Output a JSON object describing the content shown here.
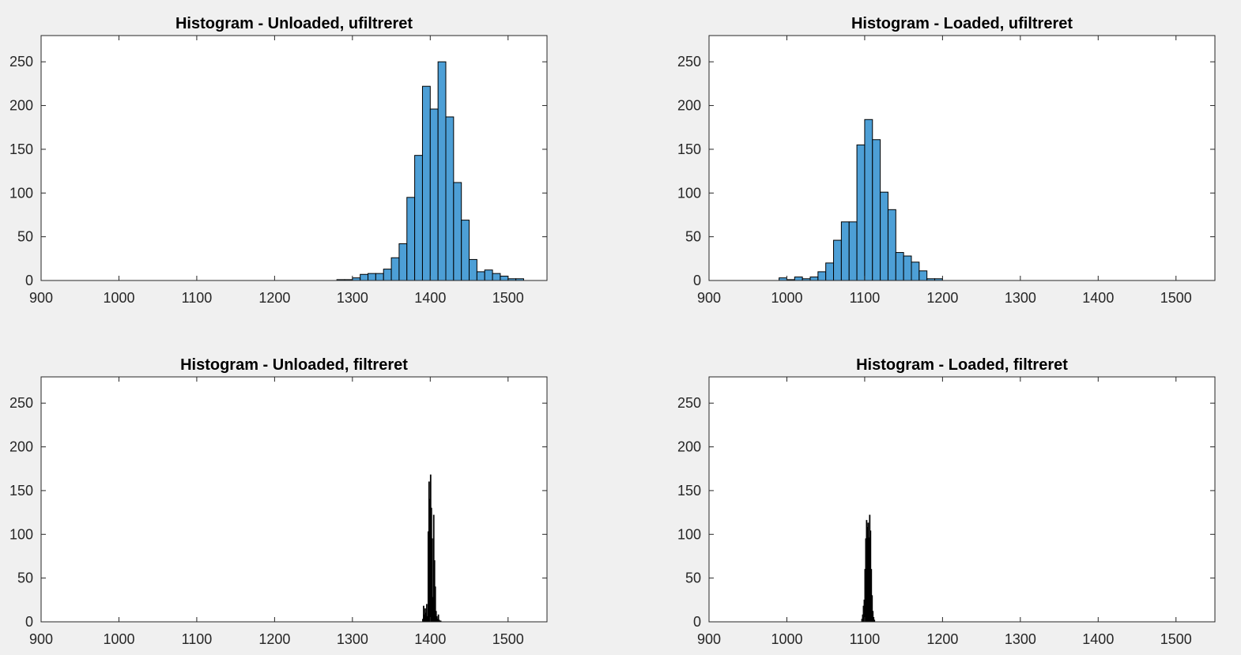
{
  "colors": {
    "figure_background": "#f0f0f0",
    "axes_background": "#ffffff",
    "bar_face": "#4d9fd6",
    "bar_edge": "#000000",
    "fine_bar_face": "#000000",
    "axis_color": "#262626"
  },
  "chart_data": [
    {
      "type": "bar",
      "title": "Histogram - Unloaded, ufiltreret",
      "xlabel": "",
      "ylabel": "",
      "xlim": [
        900,
        1550
      ],
      "ylim": [
        0,
        280
      ],
      "xticks": [
        900,
        1000,
        1100,
        1200,
        1300,
        1400,
        1500
      ],
      "yticks": [
        0,
        50,
        100,
        150,
        200,
        250
      ],
      "grid": false,
      "style": "binned",
      "bin_edges": [
        1280,
        1290,
        1300,
        1310,
        1320,
        1330,
        1340,
        1350,
        1360,
        1370,
        1380,
        1390,
        1400,
        1410,
        1420,
        1430,
        1440,
        1450,
        1460,
        1470,
        1480,
        1490,
        1500,
        1510,
        1520
      ],
      "values": [
        1,
        1,
        3,
        7,
        8,
        8,
        13,
        26,
        42,
        95,
        143,
        222,
        196,
        250,
        187,
        112,
        69,
        24,
        10,
        12,
        8,
        5,
        2,
        2
      ]
    },
    {
      "type": "bar",
      "title": "Histogram - Loaded, ufiltreret",
      "xlabel": "",
      "ylabel": "",
      "xlim": [
        900,
        1550
      ],
      "ylim": [
        0,
        280
      ],
      "xticks": [
        900,
        1000,
        1100,
        1200,
        1300,
        1400,
        1500
      ],
      "yticks": [
        0,
        50,
        100,
        150,
        200,
        250
      ],
      "grid": false,
      "style": "binned",
      "bin_edges": [
        990,
        1000,
        1010,
        1020,
        1030,
        1040,
        1050,
        1060,
        1070,
        1080,
        1090,
        1100,
        1110,
        1120,
        1130,
        1140,
        1150,
        1160,
        1170,
        1180,
        1190,
        1200
      ],
      "values": [
        3,
        1,
        4,
        2,
        4,
        10,
        20,
        46,
        67,
        67,
        155,
        184,
        161,
        101,
        81,
        32,
        28,
        21,
        11,
        2,
        2
      ]
    },
    {
      "type": "bar",
      "title": "Histogram - Unloaded, filtreret",
      "xlabel": "",
      "ylabel": "",
      "xlim": [
        900,
        1550
      ],
      "ylim": [
        0,
        280
      ],
      "xticks": [
        900,
        1000,
        1100,
        1200,
        1300,
        1400,
        1500
      ],
      "yticks": [
        0,
        50,
        100,
        150,
        200,
        250
      ],
      "grid": false,
      "style": "fine",
      "x": [
        1390,
        1391,
        1392,
        1393,
        1394,
        1395,
        1396,
        1397,
        1398,
        1399,
        1400,
        1401,
        1402,
        1403,
        1404,
        1405,
        1406,
        1407,
        1408,
        1409,
        1410,
        1411,
        1412,
        1413
      ],
      "values": [
        3,
        18,
        8,
        15,
        10,
        20,
        6,
        103,
        160,
        140,
        168,
        130,
        95,
        28,
        122,
        70,
        40,
        12,
        6,
        3,
        8,
        2,
        1,
        1
      ]
    },
    {
      "type": "bar",
      "title": "Histogram - Loaded, filtreret",
      "xlabel": "",
      "ylabel": "",
      "xlim": [
        900,
        1550
      ],
      "ylim": [
        0,
        280
      ],
      "xticks": [
        900,
        1000,
        1100,
        1200,
        1300,
        1400,
        1500
      ],
      "yticks": [
        0,
        50,
        100,
        150,
        200,
        250
      ],
      "grid": false,
      "style": "fine",
      "x": [
        1096,
        1097,
        1098,
        1099,
        1100,
        1101,
        1102,
        1103,
        1104,
        1105,
        1106,
        1107,
        1108,
        1109,
        1110,
        1111,
        1112
      ],
      "values": [
        3,
        8,
        18,
        25,
        60,
        95,
        116,
        108,
        113,
        96,
        122,
        104,
        60,
        30,
        12,
        5,
        2
      ]
    }
  ]
}
